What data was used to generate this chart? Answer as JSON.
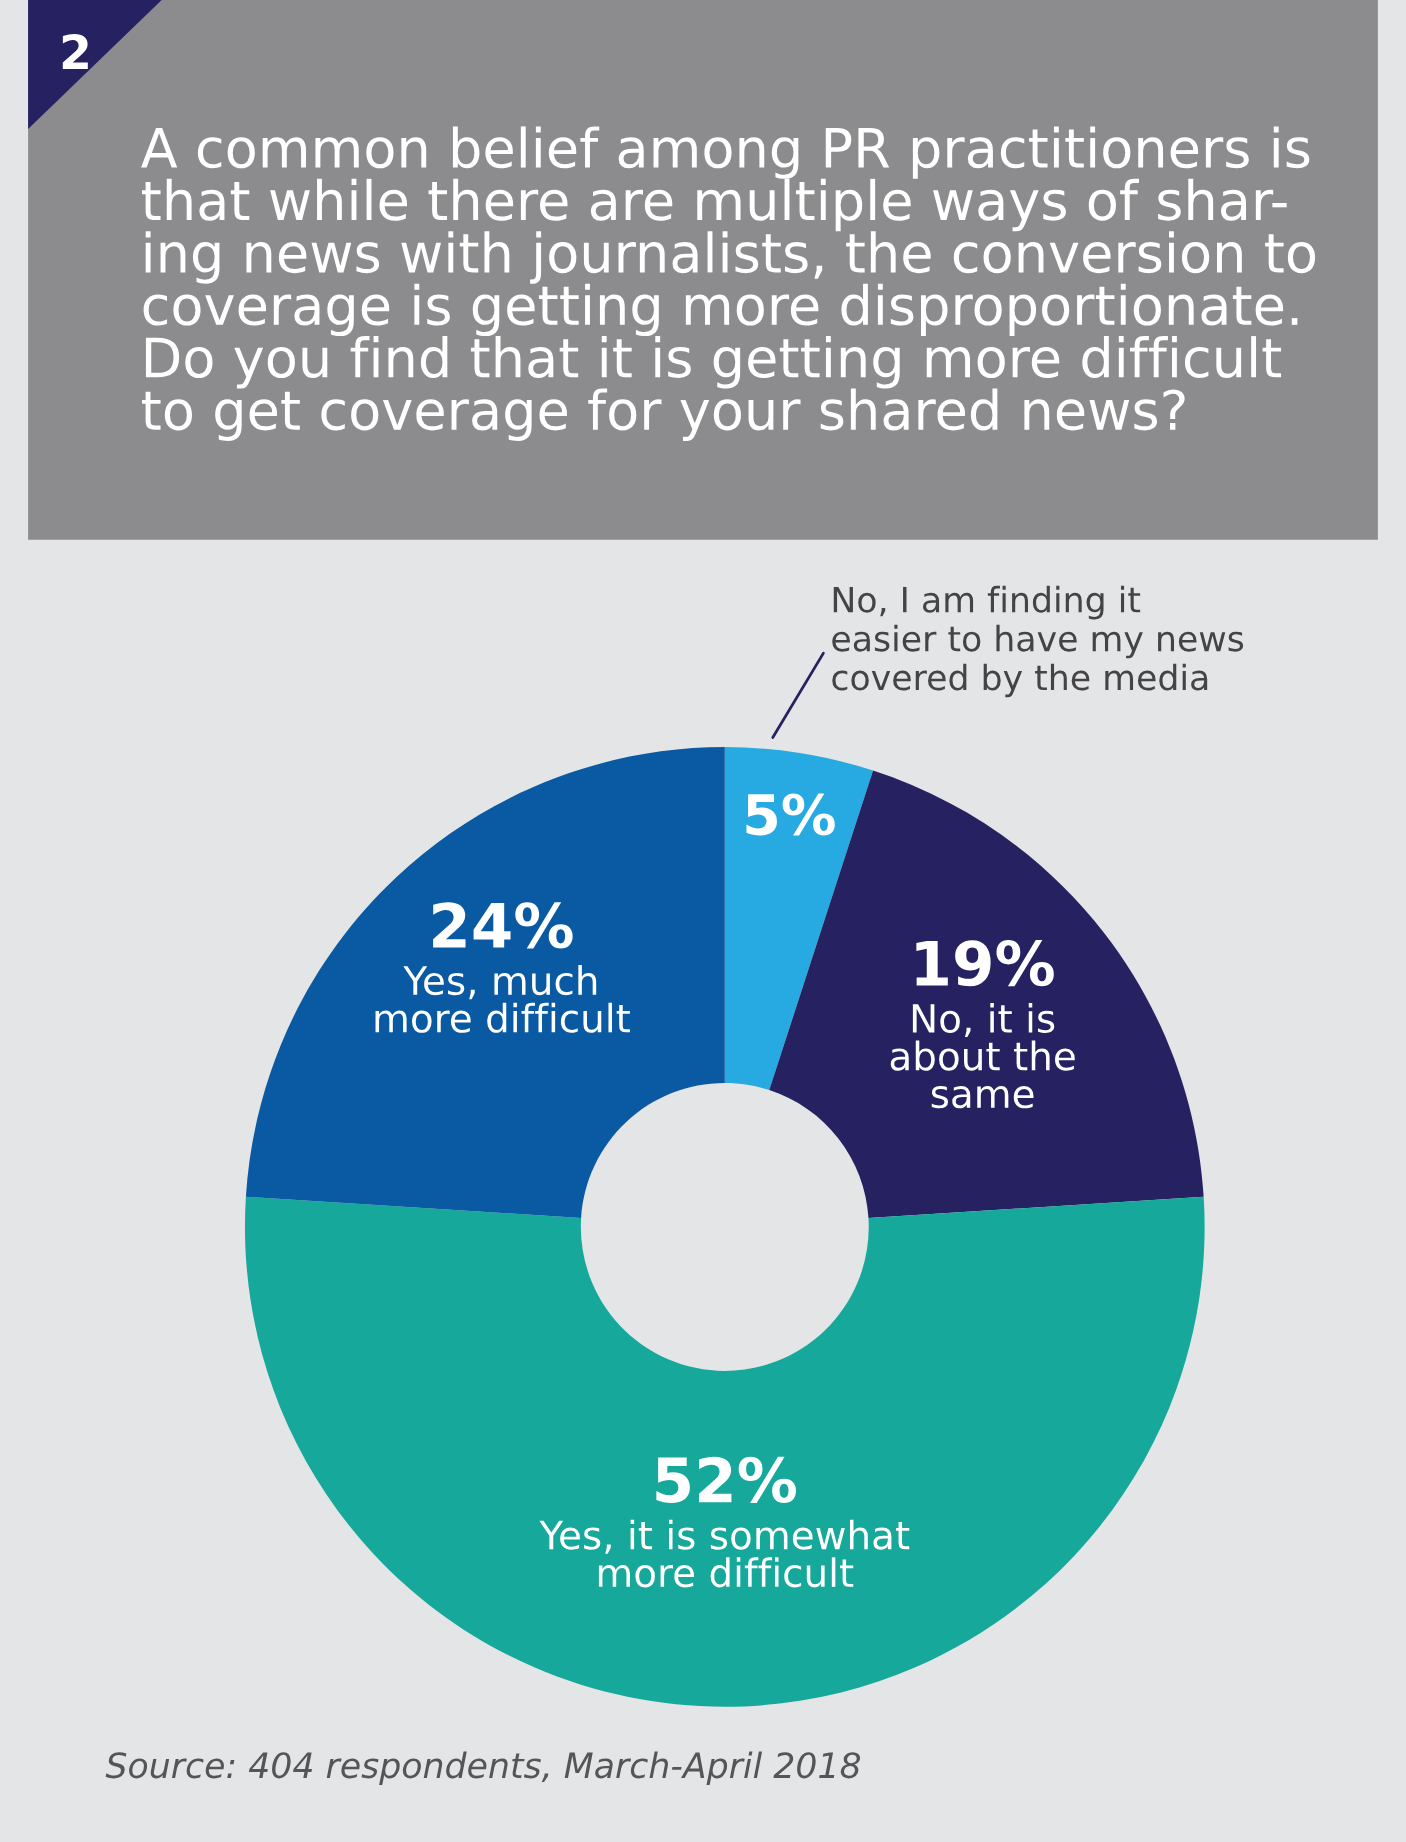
{
  "chart_data": {
    "type": "donut",
    "title": "A common belief among PR practitioners is\nthat while there are multiple ways of shar-\ning news with journalists, the conversion to\ncoverage is getting more disproportionate.\nDo you find that it is getting more difficult\nto get coverage for your shared news?",
    "categories": [
      "No, I am finding it\neasier to have my news\ncovered by the media",
      "No, it is\nabout the\nsame",
      "Yes, it is somewhat\nmore difficult",
      "Yes, much\nmore difficult"
    ],
    "values": [
      5,
      19,
      52,
      24
    ],
    "colors": [
      "#27a9e1",
      "#262262",
      "#15a89b",
      "#0a5aa3"
    ],
    "value_labels": [
      "5%",
      "19%",
      "52%",
      "24%"
    ],
    "annotations": [
      "2",
      "Source: 404 respondents, March-April 2018"
    ]
  }
}
